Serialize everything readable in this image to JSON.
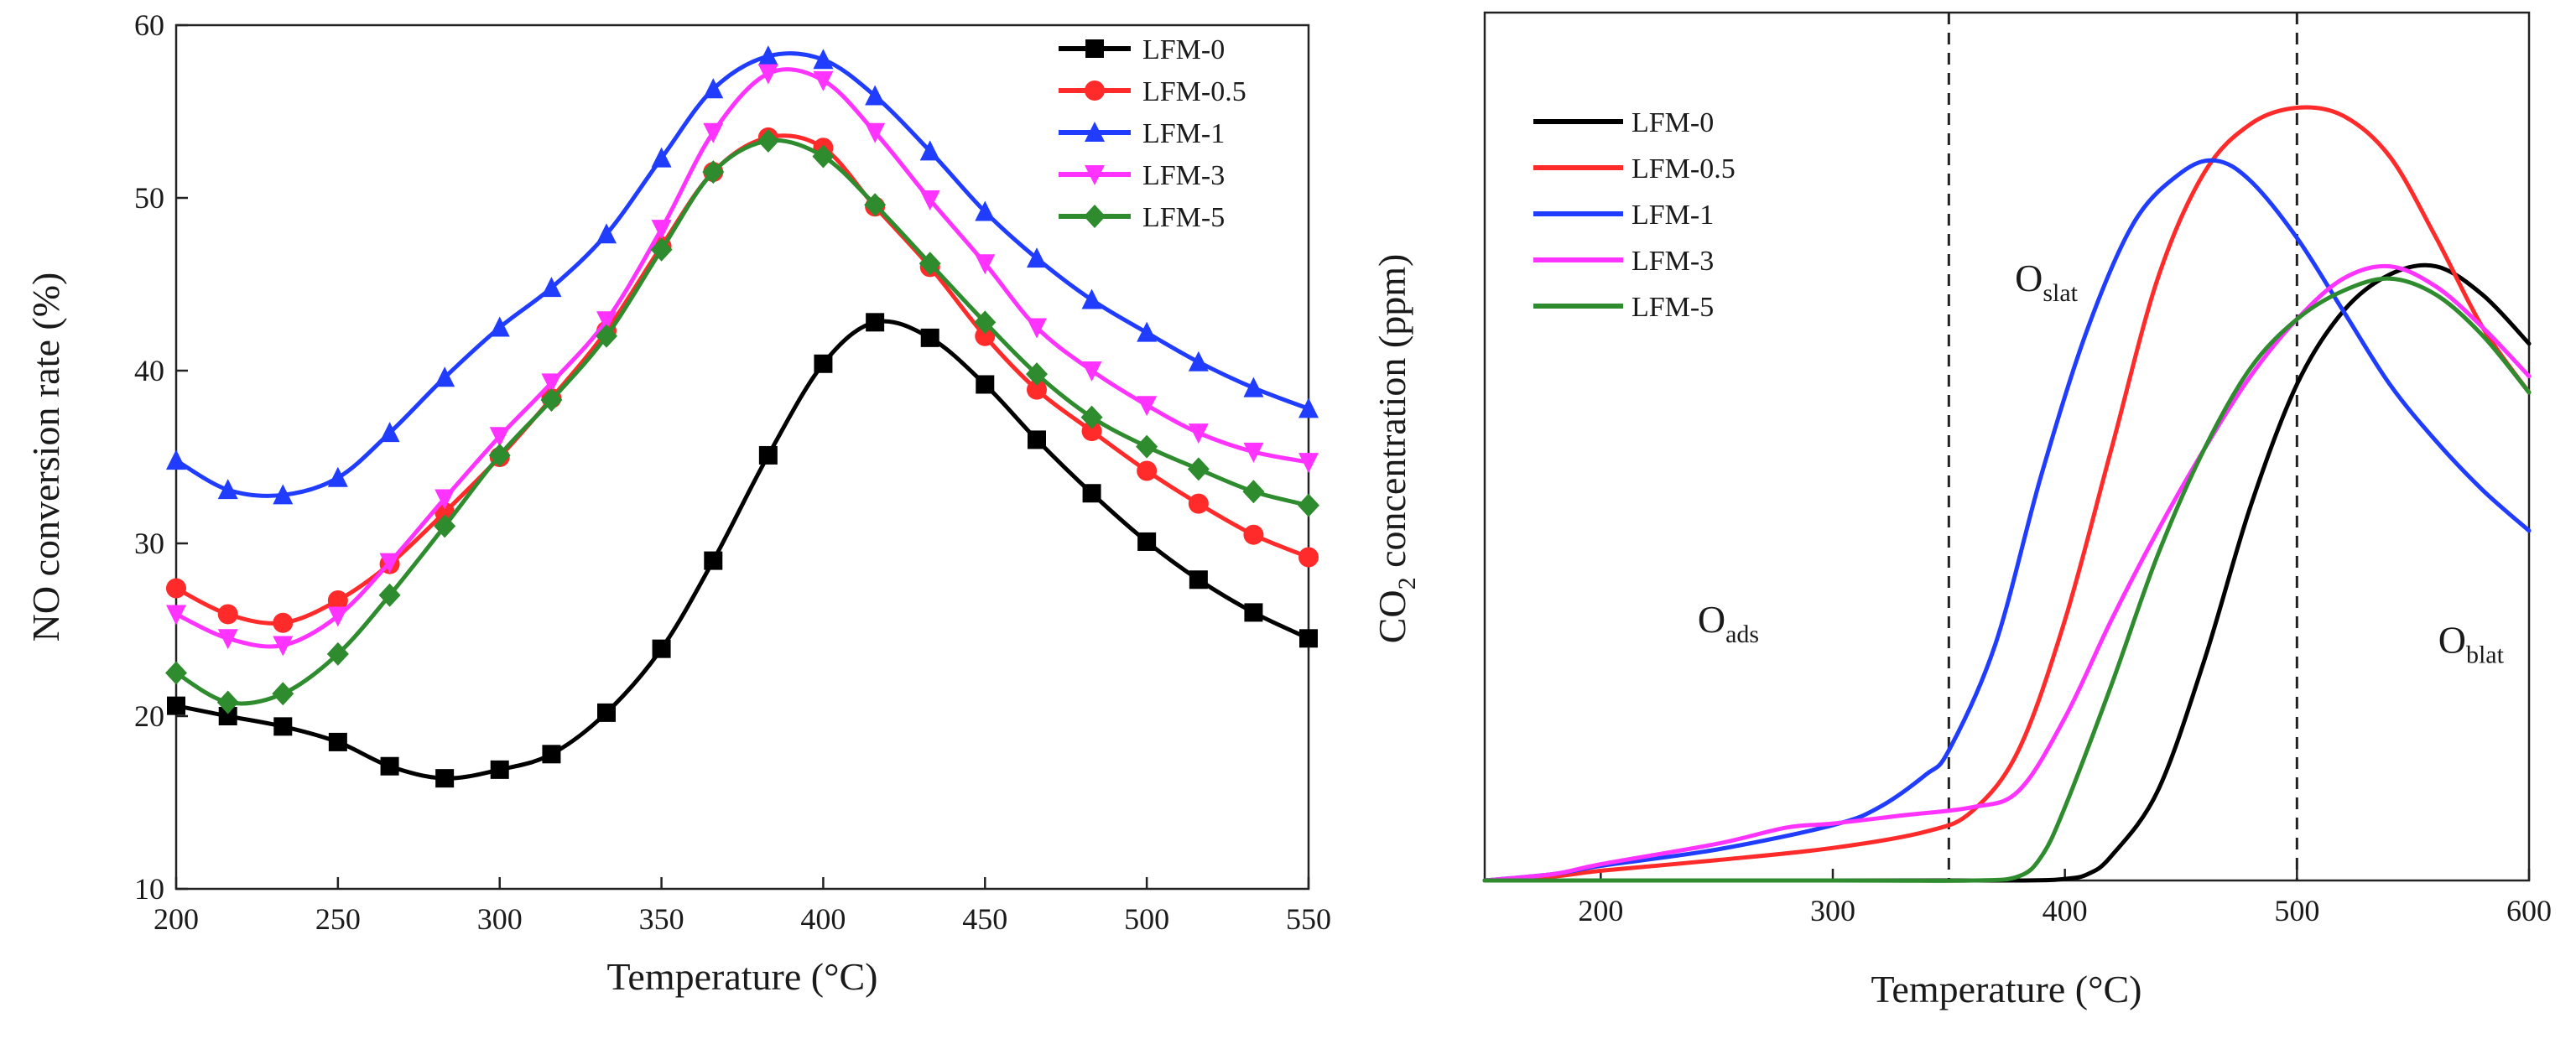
{
  "colors": {
    "LFM-0": "#000000",
    "LFM-0.5": "#ff2a2a",
    "LFM-1": "#1f3cff",
    "LFM-3": "#ff33ff",
    "LFM-5": "#2e8b2e"
  },
  "chart_data": [
    {
      "type": "line",
      "title": "",
      "xlabel": "Temperature (°C)",
      "ylabel": "NO conversion rate (%)",
      "xlim": [
        200,
        550
      ],
      "ylim": [
        10,
        60
      ],
      "xticks": [
        200,
        250,
        300,
        350,
        400,
        450,
        500,
        550
      ],
      "yticks": [
        10,
        20,
        30,
        40,
        50,
        60
      ],
      "legend": "top-right",
      "markers": true,
      "series": [
        {
          "name": "LFM-0",
          "marker": "square",
          "x": [
            200,
            216,
            233,
            250,
            266,
            283,
            300,
            316,
            333,
            350,
            366,
            383,
            400,
            416,
            433,
            450,
            466,
            483,
            500,
            516,
            533,
            550
          ],
          "y": [
            20.6,
            20.0,
            19.4,
            18.5,
            17.1,
            16.4,
            16.9,
            17.8,
            20.2,
            23.9,
            29.0,
            35.1,
            40.4,
            42.8,
            41.9,
            39.2,
            36.0,
            32.9,
            30.1,
            27.9,
            26.0,
            24.5
          ]
        },
        {
          "name": "LFM-0.5",
          "marker": "circle",
          "x": [
            200,
            216,
            233,
            250,
            266,
            283,
            300,
            316,
            333,
            350,
            366,
            383,
            400,
            416,
            433,
            450,
            466,
            483,
            500,
            516,
            533,
            550
          ],
          "y": [
            27.4,
            25.9,
            25.4,
            26.7,
            28.8,
            31.8,
            35.0,
            38.4,
            42.3,
            47.2,
            51.5,
            53.5,
            52.9,
            49.5,
            46.0,
            42.0,
            38.9,
            36.5,
            34.2,
            32.3,
            30.5,
            29.2
          ]
        },
        {
          "name": "LFM-1",
          "marker": "triangle-up",
          "x": [
            200,
            216,
            233,
            250,
            266,
            283,
            300,
            316,
            333,
            350,
            366,
            383,
            400,
            416,
            433,
            450,
            466,
            483,
            500,
            516,
            533,
            550
          ],
          "y": [
            34.8,
            33.1,
            32.8,
            33.8,
            36.4,
            39.6,
            42.5,
            44.8,
            47.9,
            52.3,
            56.3,
            58.2,
            58.0,
            55.9,
            52.7,
            49.2,
            46.5,
            44.1,
            42.2,
            40.5,
            39.0,
            37.8
          ]
        },
        {
          "name": "LFM-3",
          "marker": "triangle-down",
          "x": [
            200,
            216,
            233,
            250,
            266,
            283,
            300,
            316,
            333,
            350,
            366,
            383,
            400,
            416,
            433,
            450,
            466,
            483,
            500,
            516,
            533,
            550
          ],
          "y": [
            25.9,
            24.5,
            24.1,
            25.8,
            28.9,
            32.6,
            36.2,
            39.3,
            42.9,
            48.2,
            53.8,
            57.2,
            56.8,
            53.8,
            49.9,
            46.2,
            42.5,
            40.0,
            38.0,
            36.4,
            35.3,
            34.7
          ]
        },
        {
          "name": "LFM-5",
          "marker": "diamond",
          "x": [
            200,
            216,
            233,
            250,
            266,
            283,
            300,
            316,
            333,
            350,
            366,
            383,
            400,
            416,
            433,
            450,
            466,
            483,
            500,
            516,
            533,
            550
          ],
          "y": [
            22.5,
            20.8,
            21.3,
            23.6,
            27.0,
            31.0,
            35.1,
            38.3,
            42.0,
            47.0,
            51.5,
            53.3,
            52.4,
            49.6,
            46.2,
            42.8,
            39.8,
            37.3,
            35.6,
            34.3,
            33.0,
            32.2
          ]
        }
      ]
    },
    {
      "type": "line",
      "title": "",
      "xlabel": "Temperature (°C)",
      "ylabel": "CO2 concentration (ppm)",
      "xlim": [
        150,
        600
      ],
      "ylim": [
        0,
        1
      ],
      "xticks": [
        200,
        300,
        400,
        500,
        600
      ],
      "yticks": [],
      "legend": "top-left",
      "markers": false,
      "vlines": [
        350,
        500
      ],
      "annotations": [
        {
          "main": "O",
          "sub": "ads",
          "x": 255,
          "y": 0.305
        },
        {
          "main": "O",
          "sub": "slat",
          "x": 392,
          "y": 0.725
        },
        {
          "main": "O",
          "sub": "blat",
          "x": 575,
          "y": 0.28
        }
      ],
      "series": [
        {
          "name": "LFM-0",
          "x": [
            150,
            300,
            380,
            400,
            410,
            420,
            440,
            460,
            480,
            500,
            520,
            540,
            560,
            580,
            600
          ],
          "y": [
            0,
            0,
            0,
            0.002,
            0.008,
            0.03,
            0.11,
            0.27,
            0.46,
            0.61,
            0.7,
            0.745,
            0.755,
            0.72,
            0.66
          ]
        },
        {
          "name": "LFM-0.5",
          "x": [
            150,
            180,
            200,
            250,
            300,
            340,
            360,
            380,
            400,
            420,
            440,
            460,
            480,
            500,
            520,
            540,
            560,
            580,
            600
          ],
          "y": [
            0,
            0.005,
            0.012,
            0.025,
            0.04,
            0.06,
            0.085,
            0.16,
            0.32,
            0.53,
            0.74,
            0.87,
            0.93,
            0.95,
            0.94,
            0.89,
            0.79,
            0.68,
            0.6
          ]
        },
        {
          "name": "LFM-1",
          "x": [
            150,
            180,
            200,
            250,
            300,
            320,
            340,
            350,
            370,
            390,
            410,
            430,
            450,
            465,
            480,
            500,
            520,
            540,
            560,
            580,
            600
          ],
          "y": [
            0,
            0.008,
            0.018,
            0.038,
            0.068,
            0.09,
            0.13,
            0.16,
            0.29,
            0.5,
            0.68,
            0.81,
            0.87,
            0.885,
            0.86,
            0.79,
            0.7,
            0.61,
            0.54,
            0.48,
            0.43
          ]
        },
        {
          "name": "LFM-3",
          "x": [
            150,
            180,
            200,
            250,
            280,
            300,
            330,
            360,
            380,
            400,
            420,
            440,
            460,
            480,
            500,
            520,
            540,
            560,
            580,
            600
          ],
          "y": [
            0,
            0.008,
            0.02,
            0.045,
            0.065,
            0.07,
            0.08,
            0.09,
            0.11,
            0.2,
            0.32,
            0.43,
            0.53,
            0.62,
            0.69,
            0.74,
            0.755,
            0.73,
            0.68,
            0.62
          ]
        },
        {
          "name": "LFM-5",
          "x": [
            150,
            300,
            360,
            380,
            390,
            400,
            420,
            440,
            460,
            480,
            500,
            520,
            540,
            560,
            580,
            600
          ],
          "y": [
            0,
            0,
            0,
            0.005,
            0.03,
            0.09,
            0.24,
            0.4,
            0.53,
            0.63,
            0.69,
            0.725,
            0.74,
            0.72,
            0.67,
            0.6
          ]
        }
      ]
    }
  ]
}
